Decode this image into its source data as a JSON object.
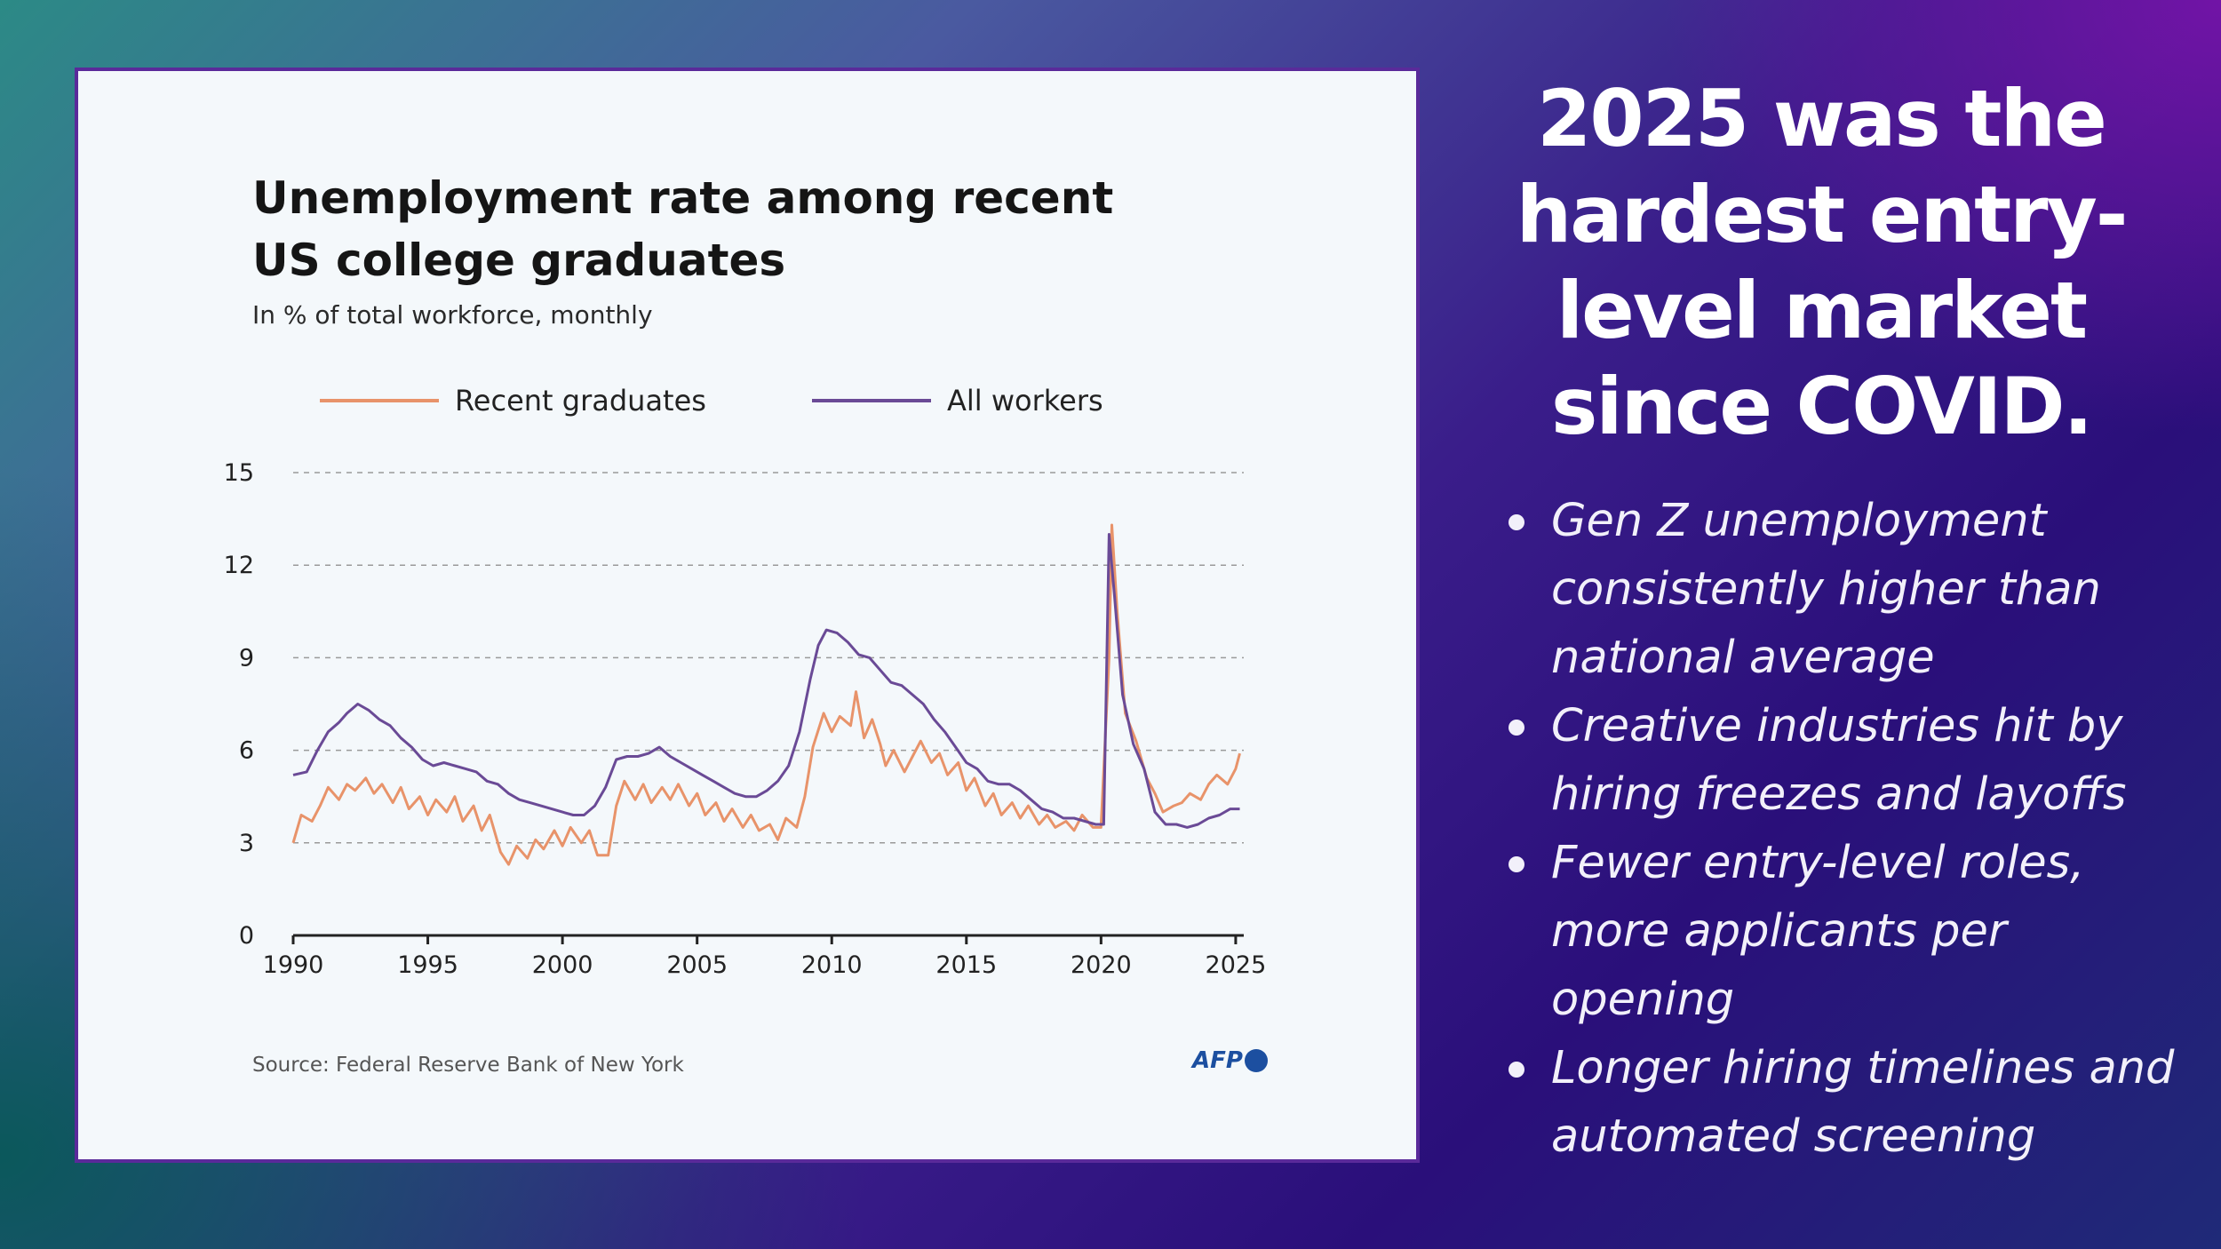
{
  "headline": "2025 was the hardest entry-level market since COVID.",
  "bullets": [
    "Gen Z unemployment consistently higher than national average",
    "Creative industries hit by hiring freezes and layoffs",
    "Fewer entry-level roles, more applicants per opening",
    "Longer hiring timelines and automated screening"
  ],
  "source": "Source: Federal Reserve Bank of New York",
  "logo_text": "AFP",
  "chart_data": {
    "type": "line",
    "title": "Unemployment rate among recent US college graduates",
    "subtitle": "In % of total workforce, monthly",
    "xlabel": "",
    "ylabel": "",
    "xlim": [
      1990,
      2025.3
    ],
    "ylim": [
      0,
      15
    ],
    "x_ticks": [
      1990,
      1995,
      2000,
      2005,
      2010,
      2015,
      2020,
      2025
    ],
    "y_ticks": [
      0,
      3,
      6,
      9,
      12,
      15
    ],
    "grid": "horizontal dashed",
    "legend": "top",
    "series": [
      {
        "name": "Recent graduates",
        "color": "#e8936a",
        "points": [
          [
            1990.0,
            3.0
          ],
          [
            1990.3,
            3.9
          ],
          [
            1990.7,
            3.7
          ],
          [
            1991.0,
            4.2
          ],
          [
            1991.3,
            4.8
          ],
          [
            1991.7,
            4.4
          ],
          [
            1992.0,
            4.9
          ],
          [
            1992.3,
            4.7
          ],
          [
            1992.7,
            5.1
          ],
          [
            1993.0,
            4.6
          ],
          [
            1993.3,
            4.9
          ],
          [
            1993.7,
            4.3
          ],
          [
            1994.0,
            4.8
          ],
          [
            1994.3,
            4.1
          ],
          [
            1994.7,
            4.5
          ],
          [
            1995.0,
            3.9
          ],
          [
            1995.3,
            4.4
          ],
          [
            1995.7,
            4.0
          ],
          [
            1996.0,
            4.5
          ],
          [
            1996.3,
            3.7
          ],
          [
            1996.7,
            4.2
          ],
          [
            1997.0,
            3.4
          ],
          [
            1997.3,
            3.9
          ],
          [
            1997.7,
            2.7
          ],
          [
            1998.0,
            2.3
          ],
          [
            1998.3,
            2.9
          ],
          [
            1998.7,
            2.5
          ],
          [
            1999.0,
            3.1
          ],
          [
            1999.3,
            2.8
          ],
          [
            1999.7,
            3.4
          ],
          [
            2000.0,
            2.9
          ],
          [
            2000.3,
            3.5
          ],
          [
            2000.7,
            3.0
          ],
          [
            2001.0,
            3.4
          ],
          [
            2001.3,
            2.6
          ],
          [
            2001.7,
            2.6
          ],
          [
            2002.0,
            4.2
          ],
          [
            2002.3,
            5.0
          ],
          [
            2002.7,
            4.4
          ],
          [
            2003.0,
            4.9
          ],
          [
            2003.3,
            4.3
          ],
          [
            2003.7,
            4.8
          ],
          [
            2004.0,
            4.4
          ],
          [
            2004.3,
            4.9
          ],
          [
            2004.7,
            4.2
          ],
          [
            2005.0,
            4.6
          ],
          [
            2005.3,
            3.9
          ],
          [
            2005.7,
            4.3
          ],
          [
            2006.0,
            3.7
          ],
          [
            2006.3,
            4.1
          ],
          [
            2006.7,
            3.5
          ],
          [
            2007.0,
            3.9
          ],
          [
            2007.3,
            3.4
          ],
          [
            2007.7,
            3.6
          ],
          [
            2008.0,
            3.1
          ],
          [
            2008.3,
            3.8
          ],
          [
            2008.7,
            3.5
          ],
          [
            2009.0,
            4.5
          ],
          [
            2009.3,
            6.1
          ],
          [
            2009.7,
            7.2
          ],
          [
            2010.0,
            6.6
          ],
          [
            2010.3,
            7.1
          ],
          [
            2010.7,
            6.8
          ],
          [
            2010.9,
            7.9
          ],
          [
            2011.2,
            6.4
          ],
          [
            2011.5,
            7.0
          ],
          [
            2011.8,
            6.2
          ],
          [
            2012.0,
            5.5
          ],
          [
            2012.3,
            6.0
          ],
          [
            2012.7,
            5.3
          ],
          [
            2013.0,
            5.8
          ],
          [
            2013.3,
            6.3
          ],
          [
            2013.7,
            5.6
          ],
          [
            2014.0,
            5.9
          ],
          [
            2014.3,
            5.2
          ],
          [
            2014.7,
            5.6
          ],
          [
            2015.0,
            4.7
          ],
          [
            2015.3,
            5.1
          ],
          [
            2015.7,
            4.2
          ],
          [
            2016.0,
            4.6
          ],
          [
            2016.3,
            3.9
          ],
          [
            2016.7,
            4.3
          ],
          [
            2017.0,
            3.8
          ],
          [
            2017.3,
            4.2
          ],
          [
            2017.7,
            3.6
          ],
          [
            2018.0,
            3.9
          ],
          [
            2018.3,
            3.5
          ],
          [
            2018.7,
            3.7
          ],
          [
            2019.0,
            3.4
          ],
          [
            2019.3,
            3.9
          ],
          [
            2019.7,
            3.5
          ],
          [
            2020.0,
            3.5
          ],
          [
            2020.3,
            9.0
          ],
          [
            2020.4,
            13.3
          ],
          [
            2020.6,
            10.5
          ],
          [
            2020.9,
            7.2
          ],
          [
            2021.3,
            6.3
          ],
          [
            2021.7,
            5.1
          ],
          [
            2022.0,
            4.6
          ],
          [
            2022.3,
            4.0
          ],
          [
            2022.7,
            4.2
          ],
          [
            2023.0,
            4.3
          ],
          [
            2023.3,
            4.6
          ],
          [
            2023.7,
            4.4
          ],
          [
            2024.0,
            4.9
          ],
          [
            2024.3,
            5.2
          ],
          [
            2024.7,
            4.9
          ],
          [
            2025.0,
            5.4
          ],
          [
            2025.15,
            5.9
          ]
        ]
      },
      {
        "name": "All workers",
        "color": "#6a4a96",
        "points": [
          [
            1990.0,
            5.2
          ],
          [
            1990.5,
            5.3
          ],
          [
            1990.9,
            6.0
          ],
          [
            1991.3,
            6.6
          ],
          [
            1991.7,
            6.9
          ],
          [
            1992.0,
            7.2
          ],
          [
            1992.4,
            7.5
          ],
          [
            1992.8,
            7.3
          ],
          [
            1993.2,
            7.0
          ],
          [
            1993.6,
            6.8
          ],
          [
            1994.0,
            6.4
          ],
          [
            1994.4,
            6.1
          ],
          [
            1994.8,
            5.7
          ],
          [
            1995.2,
            5.5
          ],
          [
            1995.6,
            5.6
          ],
          [
            1996.0,
            5.5
          ],
          [
            1996.4,
            5.4
          ],
          [
            1996.8,
            5.3
          ],
          [
            1997.2,
            5.0
          ],
          [
            1997.6,
            4.9
          ],
          [
            1998.0,
            4.6
          ],
          [
            1998.4,
            4.4
          ],
          [
            1998.8,
            4.3
          ],
          [
            1999.2,
            4.2
          ],
          [
            1999.6,
            4.1
          ],
          [
            2000.0,
            4.0
          ],
          [
            2000.4,
            3.9
          ],
          [
            2000.8,
            3.9
          ],
          [
            2001.2,
            4.2
          ],
          [
            2001.6,
            4.8
          ],
          [
            2002.0,
            5.7
          ],
          [
            2002.4,
            5.8
          ],
          [
            2002.8,
            5.8
          ],
          [
            2003.2,
            5.9
          ],
          [
            2003.6,
            6.1
          ],
          [
            2004.0,
            5.8
          ],
          [
            2004.4,
            5.6
          ],
          [
            2004.8,
            5.4
          ],
          [
            2005.2,
            5.2
          ],
          [
            2005.6,
            5.0
          ],
          [
            2006.0,
            4.8
          ],
          [
            2006.4,
            4.6
          ],
          [
            2006.8,
            4.5
          ],
          [
            2007.2,
            4.5
          ],
          [
            2007.6,
            4.7
          ],
          [
            2008.0,
            5.0
          ],
          [
            2008.4,
            5.5
          ],
          [
            2008.8,
            6.6
          ],
          [
            2009.2,
            8.3
          ],
          [
            2009.5,
            9.4
          ],
          [
            2009.8,
            9.9
          ],
          [
            2010.2,
            9.8
          ],
          [
            2010.6,
            9.5
          ],
          [
            2011.0,
            9.1
          ],
          [
            2011.4,
            9.0
          ],
          [
            2011.8,
            8.6
          ],
          [
            2012.2,
            8.2
          ],
          [
            2012.6,
            8.1
          ],
          [
            2013.0,
            7.8
          ],
          [
            2013.4,
            7.5
          ],
          [
            2013.8,
            7.0
          ],
          [
            2014.2,
            6.6
          ],
          [
            2014.6,
            6.1
          ],
          [
            2015.0,
            5.6
          ],
          [
            2015.4,
            5.4
          ],
          [
            2015.8,
            5.0
          ],
          [
            2016.2,
            4.9
          ],
          [
            2016.6,
            4.9
          ],
          [
            2017.0,
            4.7
          ],
          [
            2017.4,
            4.4
          ],
          [
            2017.8,
            4.1
          ],
          [
            2018.2,
            4.0
          ],
          [
            2018.6,
            3.8
          ],
          [
            2019.0,
            3.8
          ],
          [
            2019.4,
            3.7
          ],
          [
            2019.8,
            3.6
          ],
          [
            2020.1,
            3.6
          ],
          [
            2020.3,
            13.0
          ],
          [
            2020.5,
            11.0
          ],
          [
            2020.8,
            7.8
          ],
          [
            2021.2,
            6.2
          ],
          [
            2021.6,
            5.4
          ],
          [
            2022.0,
            4.0
          ],
          [
            2022.4,
            3.6
          ],
          [
            2022.8,
            3.6
          ],
          [
            2023.2,
            3.5
          ],
          [
            2023.6,
            3.6
          ],
          [
            2024.0,
            3.8
          ],
          [
            2024.4,
            3.9
          ],
          [
            2024.8,
            4.1
          ],
          [
            2025.15,
            4.1
          ]
        ]
      }
    ]
  }
}
